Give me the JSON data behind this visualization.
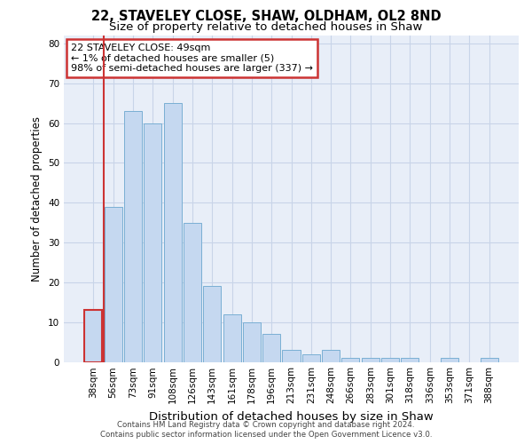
{
  "title": "22, STAVELEY CLOSE, SHAW, OLDHAM, OL2 8ND",
  "subtitle": "Size of property relative to detached houses in Shaw",
  "xlabel": "Distribution of detached houses by size in Shaw",
  "ylabel": "Number of detached properties",
  "categories": [
    "38sqm",
    "56sqm",
    "73sqm",
    "91sqm",
    "108sqm",
    "126sqm",
    "143sqm",
    "161sqm",
    "178sqm",
    "196sqm",
    "213sqm",
    "231sqm",
    "248sqm",
    "266sqm",
    "283sqm",
    "301sqm",
    "318sqm",
    "336sqm",
    "353sqm",
    "371sqm",
    "388sqm"
  ],
  "values": [
    13,
    39,
    63,
    60,
    65,
    35,
    19,
    12,
    10,
    7,
    3,
    2,
    3,
    1,
    1,
    1,
    1,
    0,
    1,
    0,
    1
  ],
  "bar_color": "#c5d8f0",
  "bar_edge_color": "#7aafd4",
  "highlight_edge_color": "#cc3333",
  "vline_color": "#cc3333",
  "annotation_text": "22 STAVELEY CLOSE: 49sqm\n← 1% of detached houses are smaller (5)\n98% of semi-detached houses are larger (337) →",
  "annotation_box_color": "white",
  "annotation_edge_color": "#cc3333",
  "ylim": [
    0,
    82
  ],
  "yticks": [
    0,
    10,
    20,
    30,
    40,
    50,
    60,
    70,
    80
  ],
  "grid_color": "#c8d4e8",
  "background_color": "#e8eef8",
  "footer_line1": "Contains HM Land Registry data © Crown copyright and database right 2024.",
  "footer_line2": "Contains public sector information licensed under the Open Government Licence v3.0.",
  "title_fontsize": 10.5,
  "subtitle_fontsize": 9.5,
  "tick_fontsize": 7.5,
  "ylabel_fontsize": 8.5,
  "xlabel_fontsize": 9.5,
  "annotation_fontsize": 8.0,
  "footer_fontsize": 6.2
}
